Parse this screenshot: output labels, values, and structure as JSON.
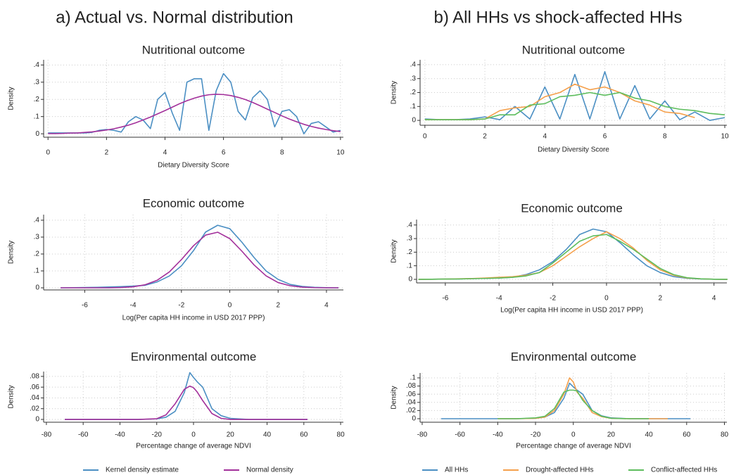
{
  "panel_titles": [
    "a) Actual vs. Normal distribution",
    "b) All HHs vs shock-affected HHs"
  ],
  "chart_data": [
    {
      "type": "line",
      "title": "Nutritional outcome",
      "x_label": "Dietary Diversity Score",
      "y_label": "Density",
      "x": [
        0,
        0.25,
        0.5,
        0.75,
        1,
        1.25,
        1.5,
        1.75,
        2,
        2.25,
        2.5,
        2.75,
        3,
        3.25,
        3.5,
        3.75,
        4,
        4.25,
        4.5,
        4.75,
        5,
        5.25,
        5.5,
        5.75,
        6,
        6.25,
        6.5,
        6.75,
        7,
        7.25,
        7.5,
        7.75,
        8,
        8.25,
        8.5,
        8.75,
        9,
        9.25,
        9.5,
        9.75,
        10
      ],
      "series": [
        {
          "name": "Kernel density estimate",
          "color": "#4b8fc3",
          "values": [
            0.005,
            0.005,
            0.005,
            0.005,
            0.005,
            0.005,
            0.008,
            0.02,
            0.025,
            0.02,
            0.01,
            0.07,
            0.1,
            0.08,
            0.03,
            0.2,
            0.24,
            0.12,
            0.02,
            0.3,
            0.32,
            0.32,
            0.02,
            0.25,
            0.35,
            0.3,
            0.13,
            0.08,
            0.21,
            0.25,
            0.2,
            0.04,
            0.13,
            0.14,
            0.1,
            0,
            0.06,
            0.07,
            0.04,
            0.01,
            0.02
          ]
        },
        {
          "name": "Normal density",
          "color": "#a3309b",
          "values": [
            0.001,
            0.001,
            0.002,
            0.004,
            0.005,
            0.008,
            0.011,
            0.016,
            0.022,
            0.029,
            0.039,
            0.05,
            0.064,
            0.08,
            0.097,
            0.116,
            0.135,
            0.155,
            0.175,
            0.192,
            0.207,
            0.219,
            0.227,
            0.23,
            0.228,
            0.222,
            0.212,
            0.199,
            0.182,
            0.163,
            0.143,
            0.124,
            0.104,
            0.086,
            0.07,
            0.055,
            0.043,
            0.033,
            0.025,
            0.018,
            0.013
          ]
        }
      ],
      "xlim": [
        -0.15,
        10.1
      ],
      "ylim": [
        -0.02,
        0.43
      ],
      "xticks": [
        0,
        2,
        4,
        6,
        8,
        10
      ],
      "yticks": [
        0,
        {
          "value": 0.1,
          "label": ".1"
        },
        {
          "value": 0.2,
          "label": ".2"
        },
        {
          "value": 0.3,
          "label": ".3"
        },
        {
          "value": 0.4,
          "label": ".4"
        }
      ],
      "grid": true
    },
    {
      "type": "line",
      "title": "Economic outcome",
      "x_label": "Log(Per capita HH income in USD 2017 PPP)",
      "y_label": "Density",
      "x": [
        -7,
        -6.5,
        -6,
        -5.5,
        -5,
        -4.5,
        -4,
        -3.5,
        -3,
        -2.5,
        -2,
        -1.5,
        -1,
        -0.5,
        0,
        0.5,
        1,
        1.5,
        2,
        2.5,
        3,
        3.5,
        4,
        4.5
      ],
      "series": [
        {
          "name": "Kernel density estimate",
          "color": "#4b8fc3",
          "values": [
            0,
            0.001,
            0.002,
            0.003,
            0.005,
            0.007,
            0.01,
            0.015,
            0.035,
            0.07,
            0.13,
            0.22,
            0.33,
            0.37,
            0.35,
            0.27,
            0.18,
            0.1,
            0.05,
            0.02,
            0.008,
            0.003,
            0.001,
            0
          ]
        },
        {
          "name": "Normal density",
          "color": "#a3309b",
          "values": [
            0,
            0,
            0,
            0,
            0,
            0.002,
            0.006,
            0.018,
            0.045,
            0.094,
            0.167,
            0.249,
            0.312,
            0.329,
            0.291,
            0.217,
            0.136,
            0.071,
            0.031,
            0.012,
            0.004,
            0.001,
            0,
            0
          ]
        }
      ],
      "xlim": [
        -7.7,
        4.7
      ],
      "ylim": [
        -0.0125,
        0.433
      ],
      "xticks": [
        -6,
        -4,
        -2,
        0,
        2,
        4
      ],
      "yticks": [
        0,
        {
          "value": 0.1,
          "label": ".1"
        },
        {
          "value": 0.2,
          "label": ".2"
        },
        {
          "value": 0.3,
          "label": ".3"
        },
        {
          "value": 0.4,
          "label": ".4"
        }
      ],
      "grid": true
    },
    {
      "type": "line",
      "title": "Environmental outcome",
      "x_label": "Percentage change of average NDVI",
      "y_label": "Density",
      "x": [
        -70,
        -60,
        -50,
        -40,
        -30,
        -20,
        -15,
        -10,
        -5,
        -2,
        0,
        2,
        5,
        10,
        15,
        20,
        30,
        40,
        50,
        62
      ],
      "series": [
        {
          "name": "Kernel density estimate",
          "color": "#4b8fc3",
          "values": [
            0,
            0,
            0,
            0,
            0,
            0.001,
            0.004,
            0.015,
            0.05,
            0.087,
            0.078,
            0.07,
            0.06,
            0.02,
            0.007,
            0.002,
            0,
            0,
            0,
            0
          ]
        },
        {
          "name": "Normal density",
          "color": "#a3309b",
          "values": [
            0,
            0,
            0,
            0,
            0,
            0.0013,
            0.0084,
            0.029,
            0.056,
            0.062,
            0.059,
            0.051,
            0.035,
            0.011,
            0.002,
            0,
            0,
            0,
            0,
            0
          ]
        }
      ],
      "xlim": [
        -81.5,
        81.5
      ],
      "ylim": [
        -0.0052,
        0.089
      ],
      "xticks": [
        -80,
        -60,
        -40,
        -20,
        0,
        20,
        40,
        60,
        80
      ],
      "yticks": [
        0,
        {
          "value": 0.02,
          "label": ".02"
        },
        {
          "value": 0.04,
          "label": ".04"
        },
        {
          "value": 0.06,
          "label": ".06"
        },
        {
          "value": 0.08,
          "label": ".08"
        }
      ],
      "grid": true,
      "legend": "bottom"
    },
    {
      "type": "line",
      "title": "Nutritional outcome",
      "x_label": "Dietary Diversity Score",
      "y_label": "Density",
      "x": [
        0,
        0.5,
        1,
        1.5,
        2,
        2.5,
        3,
        3.5,
        4,
        4.5,
        5,
        5.5,
        6,
        6.5,
        7,
        7.5,
        8,
        8.5,
        9,
        9.5,
        10
      ],
      "series": [
        {
          "name": "All HHs",
          "color": "#4b8fc3",
          "values": [
            0.01,
            0.005,
            0.005,
            0.01,
            0.025,
            0.005,
            0.1,
            0.01,
            0.24,
            0.01,
            0.33,
            0.01,
            0.35,
            0.01,
            0.25,
            0.01,
            0.14,
            0.005,
            0.06,
            0,
            0.02
          ]
        },
        {
          "name": "Drought-affected HHs",
          "color": "#f5a04c",
          "values": [
            0.005,
            0.005,
            0.005,
            0.005,
            0.01,
            0.07,
            0.09,
            0.1,
            0.17,
            0.2,
            0.26,
            0.22,
            0.24,
            0.2,
            0.14,
            0.11,
            0.06,
            0.05,
            0.02,
            null,
            null
          ]
        },
        {
          "name": "Conflict-affected HHs",
          "color": "#5dbd5d",
          "values": [
            0.005,
            0.005,
            0.005,
            0.005,
            0.01,
            0.04,
            0.04,
            0.11,
            0.12,
            0.17,
            0.18,
            0.2,
            0.18,
            0.2,
            0.16,
            0.14,
            0.1,
            0.08,
            0.07,
            0.05,
            0.04
          ]
        }
      ],
      "xlim": [
        -0.16,
        10.07
      ],
      "ylim": [
        -0.035,
        0.435
      ],
      "xticks": [
        0,
        2,
        4,
        6,
        8,
        10
      ],
      "yticks": [
        0,
        {
          "value": 0.1,
          "label": ".1"
        },
        {
          "value": 0.2,
          "label": ".2"
        },
        {
          "value": 0.3,
          "label": ".3"
        },
        {
          "value": 0.4,
          "label": ".4"
        }
      ],
      "grid": true
    },
    {
      "type": "line",
      "title": "Economic outcome",
      "x_label": "Log(Per capita HH income in USD 2017 PPP)",
      "y_label": "Density",
      "x": [
        -7,
        -6.5,
        -6,
        -5.5,
        -5,
        -4.5,
        -4,
        -3.5,
        -3,
        -2.5,
        -2,
        -1.5,
        -1,
        -0.5,
        0,
        0.5,
        1,
        1.5,
        2,
        2.5,
        3,
        3.5,
        4,
        4.5
      ],
      "series": [
        {
          "name": "All HHs",
          "color": "#4b8fc3",
          "values": [
            0,
            0.001,
            0.002,
            0.003,
            0.005,
            0.007,
            0.01,
            0.015,
            0.035,
            0.07,
            0.13,
            0.22,
            0.33,
            0.37,
            0.35,
            0.27,
            0.18,
            0.1,
            0.05,
            0.02,
            0.008,
            0.003,
            0.001,
            0
          ]
        },
        {
          "name": "Drought-affected HHs",
          "color": "#f5a04c",
          "values": [
            0,
            0.001,
            0.002,
            0.004,
            0.006,
            0.01,
            0.015,
            0.02,
            0.03,
            0.05,
            0.1,
            0.17,
            0.24,
            0.3,
            0.35,
            0.3,
            0.23,
            0.14,
            0.07,
            0.03,
            0.01,
            0.004,
            0.001,
            0
          ]
        },
        {
          "name": "Conflict-affected HHs",
          "color": "#5dbd5d",
          "values": [
            0,
            0.001,
            0.002,
            0.003,
            0.005,
            0.007,
            0.01,
            0.015,
            0.025,
            0.05,
            0.12,
            0.2,
            0.28,
            0.32,
            0.33,
            0.28,
            0.22,
            0.15,
            0.08,
            0.035,
            0.012,
            0.004,
            0.001,
            0
          ]
        }
      ],
      "xlim": [
        -7.07,
        4.48
      ],
      "ylim": [
        -0.026,
        0.44
      ],
      "xticks": [
        -6,
        -4,
        -2,
        0,
        2,
        4
      ],
      "yticks": [
        0,
        {
          "value": 0.1,
          "label": ".1"
        },
        {
          "value": 0.2,
          "label": ".2"
        },
        {
          "value": 0.3,
          "label": ".3"
        },
        {
          "value": 0.4,
          "label": ".4"
        }
      ],
      "grid": true
    },
    {
      "type": "line",
      "title": "Environmental outcome",
      "x_label": "Percentage change of average NDVI",
      "y_label": "Density",
      "x": [
        -70,
        -60,
        -50,
        -40,
        -30,
        -20,
        -15,
        -10,
        -5,
        -2,
        0,
        2,
        5,
        10,
        15,
        20,
        30,
        40,
        50,
        62
      ],
      "series": [
        {
          "name": "All HHs",
          "color": "#4b8fc3",
          "values": [
            0,
            0,
            0,
            0,
            0,
            0.001,
            0.004,
            0.015,
            0.05,
            0.087,
            0.078,
            0.07,
            0.06,
            0.02,
            0.007,
            0.002,
            0,
            0,
            0,
            0
          ]
        },
        {
          "name": "Drought-affected HHs",
          "color": "#f5a04c",
          "values": [
            null,
            null,
            null,
            0,
            0,
            0.001,
            0.004,
            0.02,
            0.06,
            0.1,
            0.09,
            0.065,
            0.05,
            0.015,
            0.005,
            0.001,
            0,
            0,
            0,
            null
          ]
        },
        {
          "name": "Conflict-affected HHs",
          "color": "#5dbd5d",
          "values": [
            null,
            null,
            null,
            0,
            0,
            0.002,
            0.006,
            0.025,
            0.065,
            0.07,
            0.07,
            0.068,
            0.045,
            0.02,
            0.006,
            0.001,
            0,
            0,
            null,
            null
          ]
        }
      ],
      "xlim": [
        -81.1,
        81.3
      ],
      "ylim": [
        -0.0086,
        0.112
      ],
      "xticks": [
        -80,
        -60,
        -40,
        -20,
        0,
        20,
        40,
        60,
        80
      ],
      "yticks": [
        0,
        {
          "value": 0.02,
          "label": ".02"
        },
        {
          "value": 0.04,
          "label": ".04"
        },
        {
          "value": 0.06,
          "label": ".06"
        },
        {
          "value": 0.08,
          "label": ".08"
        },
        {
          "value": 0.1,
          "label": ".1"
        }
      ],
      "grid": true,
      "legend": "bottom"
    }
  ]
}
